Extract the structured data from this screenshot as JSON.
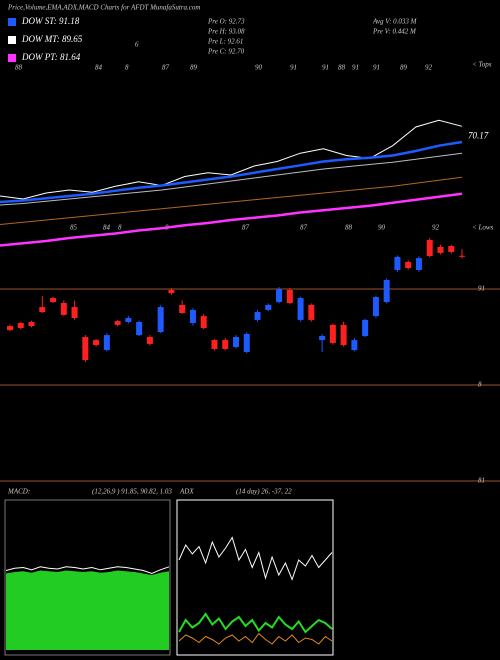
{
  "header": {
    "title": "Price,Volume,EMA,ADX,MACD Charts for AFDT MunafaSutra.com",
    "legend": [
      {
        "label": "DOW ST: 91.18",
        "color": "#1e5bff"
      },
      {
        "label": "DOW MT: 89.65",
        "color": "#ffffff"
      },
      {
        "label": "DOW PT: 81.64",
        "color": "#ff33ff"
      }
    ],
    "prev": [
      "Pre  O: 92.73",
      "Pre  H: 93.08",
      "Pre  L: 92.61",
      "Pre  C: 92.70"
    ],
    "volume": [
      "Avg V: 0.033 M",
      "Pre  V: 0.442 M"
    ]
  },
  "chart_data": [
    {
      "type": "line",
      "ylim": [
        55,
        75
      ],
      "yticks": [
        70.17
      ],
      "top_labels": [
        "88",
        "84",
        "8",
        "87",
        "89",
        "90",
        "91",
        "91",
        "88",
        "91",
        "91",
        "89",
        "92"
      ],
      "bottom_labels": [
        "85",
        "84",
        "8",
        "8",
        "87",
        "87",
        "88",
        "90",
        "92"
      ],
      "corner_label": "6",
      "tops_label": "< Tops",
      "lows_label": "< Lows",
      "series": [
        {
          "color": "#ffffff",
          "width": 1,
          "values": [
            62.2,
            61.8,
            62.6,
            63.0,
            62.7,
            63.5,
            64.1,
            63.6,
            64.8,
            65.3,
            65.0,
            66.2,
            66.8,
            67.9,
            68.5,
            67.6,
            67.2,
            68.9,
            71.4,
            72.3,
            71.5
          ]
        },
        {
          "color": "#1e5bff",
          "width": 2.5,
          "values": [
            61.4,
            61.6,
            61.9,
            62.2,
            62.5,
            62.9,
            63.3,
            63.6,
            64.0,
            64.4,
            64.8,
            65.3,
            65.8,
            66.3,
            66.8,
            67.1,
            67.3,
            67.6,
            68.2,
            68.9,
            69.4
          ]
        },
        {
          "color": "#bbbbbb",
          "width": 1,
          "values": [
            61.0,
            61.2,
            61.5,
            61.8,
            62.1,
            62.4,
            62.7,
            63.0,
            63.4,
            63.8,
            64.2,
            64.6,
            65.0,
            65.4,
            65.8,
            66.1,
            66.4,
            66.7,
            67.1,
            67.5,
            67.9
          ]
        },
        {
          "color": "#b5651d",
          "width": 1,
          "values": [
            58.4,
            58.7,
            59.0,
            59.3,
            59.6,
            59.9,
            60.2,
            60.5,
            60.8,
            61.1,
            61.4,
            61.7,
            62.0,
            62.3,
            62.6,
            62.9,
            63.2,
            63.5,
            63.9,
            64.3,
            64.7
          ]
        },
        {
          "color": "#ff33ff",
          "width": 2.5,
          "values": [
            55.6,
            55.9,
            56.2,
            56.6,
            56.9,
            57.2,
            57.6,
            57.9,
            58.3,
            58.6,
            59.0,
            59.3,
            59.6,
            60.0,
            60.3,
            60.6,
            60.9,
            61.3,
            61.7,
            62.1,
            62.5
          ]
        }
      ]
    },
    {
      "type": "candlestick",
      "ylim": [
        80.5,
        94
      ],
      "yticks": [
        91,
        {
          "value": 86,
          "label": "8"
        },
        81
      ],
      "up_color": "#1e5bff",
      "down_color": "#ff2020",
      "grid_color": "#a0522d",
      "open": [
        89.07,
        89.23,
        89.28,
        90.06,
        90.53,
        90.27,
        90.06,
        88.5,
        88.34,
        87.82,
        89.33,
        89.28,
        88.6,
        88.5,
        88.76,
        90.95,
        90.17,
        89.23,
        89.59,
        88.34,
        88.34,
        87.98,
        87.72,
        89.39,
        89.91,
        90.32,
        90.95,
        89.39,
        90.17,
        88.34,
        89.13,
        89.13,
        87.82,
        88.55,
        89.59,
        90.32,
        91.99,
        92.41,
        91.99,
        93.55,
        93.19,
        93.24,
        92.73
      ],
      "high": [
        89.15,
        89.3,
        89.35,
        90.64,
        90.6,
        90.4,
        90.4,
        88.6,
        88.4,
        88.7,
        89.4,
        89.6,
        89.35,
        88.6,
        90.15,
        91.05,
        90.4,
        90.0,
        89.7,
        88.4,
        88.45,
        88.6,
        88.75,
        89.9,
        90.25,
        91.1,
        91.05,
        90.6,
        90.25,
        88.65,
        89.2,
        89.3,
        88.45,
        89.45,
        90.65,
        91.55,
        92.75,
        92.5,
        92.7,
        93.65,
        93.3,
        93.3,
        93.08
      ],
      "low": [
        88.8,
        88.9,
        89.0,
        89.75,
        90.27,
        89.6,
        89.4,
        87.2,
        88.0,
        87.75,
        89.05,
        89.2,
        88.55,
        88.05,
        88.7,
        90.7,
        89.7,
        89.1,
        88.9,
        87.8,
        87.8,
        87.9,
        87.65,
        89.3,
        89.85,
        90.25,
        90.2,
        89.3,
        89.3,
        87.72,
        88.1,
        88.0,
        87.75,
        88.5,
        89.5,
        90.25,
        91.9,
        92.0,
        91.9,
        92.65,
        92.8,
        92.85,
        92.61
      ],
      "close": [
        88.86,
        88.97,
        89.07,
        89.8,
        90.32,
        89.65,
        89.49,
        87.3,
        88.08,
        88.6,
        89.13,
        89.49,
        89.28,
        88.14,
        90.06,
        90.79,
        89.75,
        89.91,
        88.97,
        87.88,
        87.88,
        88.5,
        88.66,
        89.8,
        90.17,
        91.0,
        90.27,
        90.53,
        89.39,
        88.55,
        88.19,
        88.08,
        88.34,
        89.39,
        90.58,
        91.47,
        92.67,
        92.09,
        92.61,
        92.72,
        92.88,
        92.93,
        92.7
      ]
    },
    {
      "type": "line",
      "title": "MACD:",
      "params": "(12,26,9 ) 91.85, 90.82, 1.03",
      "ylim": [
        -1,
        1
      ],
      "series": [
        {
          "color": "#22cc22",
          "fill": true,
          "width": 1,
          "values": [
            0.02,
            0.04,
            0.05,
            0.03,
            0.06,
            0.05,
            0.04,
            0.06,
            0.05,
            0.04,
            0.05,
            0.03,
            0.04,
            0.06,
            0.05,
            0.04,
            0.02,
            0.0,
            0.03,
            0.05
          ]
        },
        {
          "color": "#000000",
          "width": 1,
          "values": [
            0.05,
            0.07,
            0.08,
            0.06,
            0.09,
            0.08,
            0.07,
            0.09,
            0.08,
            0.07,
            0.08,
            0.06,
            0.07,
            0.09,
            0.08,
            0.07,
            0.05,
            0.03,
            0.06,
            0.08
          ]
        },
        {
          "color": "#ffffff",
          "width": 1,
          "values": [
            0.06,
            0.09,
            0.1,
            0.07,
            0.11,
            0.09,
            0.08,
            0.11,
            0.1,
            0.08,
            0.1,
            0.07,
            0.09,
            0.11,
            0.1,
            0.08,
            0.06,
            0.02,
            0.07,
            0.11
          ]
        }
      ]
    },
    {
      "type": "line",
      "title": "ADX",
      "params": "(14 day) 26, -37, 22",
      "ylim": [
        0,
        100
      ],
      "series": [
        {
          "color": "#ffffff",
          "width": 1,
          "values": [
            60,
            70,
            64,
            69,
            58,
            72,
            62,
            68,
            75,
            60,
            67,
            55,
            65,
            48,
            62,
            50,
            58,
            47,
            60,
            56,
            63,
            55,
            60,
            65
          ]
        },
        {
          "color": "#22dd22",
          "width": 2,
          "values": [
            12,
            20,
            15,
            18,
            24,
            17,
            21,
            14,
            19,
            22,
            16,
            20,
            13,
            18,
            15,
            22,
            17,
            14,
            19,
            12,
            16,
            20,
            18,
            14
          ]
        },
        {
          "color": "#e08a1e",
          "width": 1,
          "values": [
            6,
            10,
            8,
            5,
            9,
            7,
            4,
            8,
            10,
            6,
            9,
            5,
            11,
            7,
            4,
            9,
            6,
            10,
            5,
            8,
            7,
            4,
            9,
            6
          ]
        }
      ]
    }
  ]
}
